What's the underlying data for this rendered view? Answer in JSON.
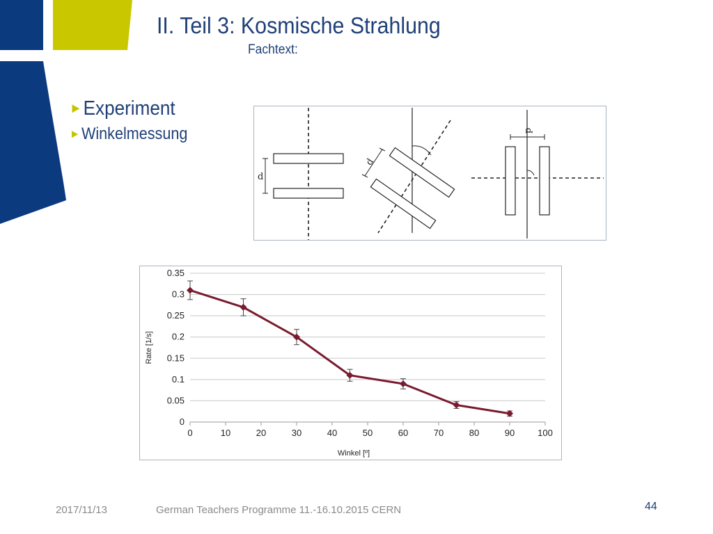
{
  "slide": {
    "title": "II. Teil 3: Kosmische Strahlung",
    "subtitle": "Fachtext:",
    "bullets": [
      {
        "arrow": "►",
        "text": "Experiment"
      },
      {
        "arrow": "►",
        "text": "Winkelmessung"
      }
    ],
    "footer": {
      "date": "2017/11/13",
      "programme": "German Teachers Programme  11.-16.10.2015 CERN",
      "page_number": "44"
    },
    "colors": {
      "title_blue": "#1f3f78",
      "logo_blue": "#0b3a7e",
      "logo_yellow": "#c9c800",
      "series": "#7a1a2e"
    }
  },
  "diagram": {
    "labels": {
      "d1": "d",
      "d2": "d",
      "d3": "p"
    }
  },
  "chart_data": {
    "type": "line",
    "x": [
      0,
      15,
      30,
      45,
      60,
      75,
      90
    ],
    "series": [
      {
        "values": [
          0.31,
          0.27,
          0.2,
          0.11,
          0.09,
          0.04,
          0.02
        ],
        "errors": [
          0.022,
          0.02,
          0.018,
          0.014,
          0.012,
          0.008,
          0.006
        ]
      }
    ],
    "xlabel": "Winkel [º]",
    "ylabel": "Rate [1/s]",
    "xlim": [
      0,
      100
    ],
    "ylim": [
      0,
      0.35
    ],
    "xticks": [
      "0",
      "10",
      "20",
      "30",
      "40",
      "50",
      "60",
      "70",
      "80",
      "90",
      "100"
    ],
    "yticks": [
      "0",
      "0.05",
      "0.1",
      "0.15",
      "0.2",
      "0.25",
      "0.3",
      "0.35"
    ],
    "grid": "horizontal",
    "legend": "none"
  }
}
